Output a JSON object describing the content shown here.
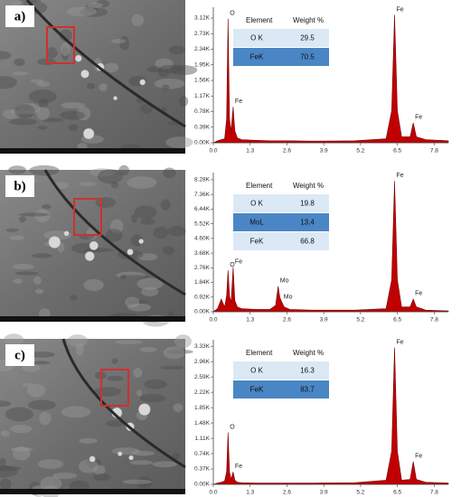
{
  "chart_data": [
    {
      "type": "area",
      "panel_label": "a)",
      "x": [
        0,
        0.15,
        0.28,
        0.4,
        0.47,
        0.52,
        0.57,
        0.63,
        0.7,
        0.76,
        0.85,
        1.0,
        1.5,
        2.0,
        2.2,
        2.29,
        2.35,
        2.42,
        2.5,
        2.7,
        3.5,
        5.0,
        6.1,
        6.3,
        6.4,
        6.5,
        6.65,
        6.95,
        7.06,
        7.17,
        7.5,
        8.3
      ],
      "values": [
        0,
        0.05,
        0.08,
        0.1,
        0.6,
        3.1,
        0.6,
        0.3,
        0.9,
        0.3,
        0.12,
        0.08,
        0.06,
        0.05,
        0.05,
        0.05,
        0.05,
        0.05,
        0.05,
        0.05,
        0.04,
        0.05,
        0.1,
        0.8,
        3.2,
        0.8,
        0.15,
        0.15,
        0.5,
        0.15,
        0.08,
        0.05
      ],
      "color": "#c00000",
      "xlim": [
        0,
        8.3
      ],
      "xticks": [
        {
          "value": 0,
          "label": "0.0"
        },
        1.3,
        2.6,
        3.9,
        5.2,
        6.5,
        7.8
      ],
      "ylim": [
        0,
        3.3
      ],
      "yticks": [
        {
          "value": 0,
          "label": "0.00K"
        },
        {
          "value": 0.39,
          "label": "0.39K"
        },
        {
          "value": 0.78,
          "label": "0.78K"
        },
        {
          "value": 1.17,
          "label": "1.17K"
        },
        {
          "value": 1.56,
          "label": "1.56K"
        },
        {
          "value": 1.95,
          "label": "1.95K"
        },
        {
          "value": 2.34,
          "label": "2.34K"
        },
        {
          "value": 2.73,
          "label": "2.73K"
        },
        {
          "value": 3.12,
          "label": "3.12K"
        }
      ],
      "annotations": [
        {
          "text": "O",
          "x": 0.52
        },
        {
          "text": "Fe",
          "x": 0.7
        },
        {
          "text": "Fe",
          "x": 6.4
        },
        {
          "text": "Fe",
          "x": 7.06
        }
      ],
      "table": {
        "columns": [
          "Element",
          "Weight %"
        ],
        "rows": [
          [
            "O K",
            29.5
          ],
          [
            "FeK",
            70.5
          ]
        ]
      }
    },
    {
      "type": "area",
      "panel_label": "b)",
      "x": [
        0,
        0.15,
        0.28,
        0.4,
        0.47,
        0.52,
        0.57,
        0.63,
        0.7,
        0.76,
        0.85,
        1.0,
        1.5,
        2.0,
        2.2,
        2.29,
        2.35,
        2.42,
        2.5,
        2.7,
        3.5,
        5.0,
        6.1,
        6.3,
        6.4,
        6.5,
        6.65,
        6.95,
        7.06,
        7.17,
        7.5,
        8.3
      ],
      "values": [
        0,
        0.2,
        0.8,
        0.3,
        1.0,
        2.6,
        1.0,
        0.6,
        2.8,
        0.7,
        0.3,
        0.2,
        0.15,
        0.15,
        0.4,
        1.6,
        0.9,
        0.6,
        0.3,
        0.15,
        0.1,
        0.1,
        0.2,
        2.0,
        8.2,
        2.0,
        0.3,
        0.3,
        0.8,
        0.3,
        0.1,
        0.05
      ],
      "color": "#c00000",
      "xlim": [
        0,
        8.3
      ],
      "xticks": [
        {
          "value": 0,
          "label": "0.0"
        },
        1.3,
        2.6,
        3.9,
        5.2,
        6.5,
        7.8
      ],
      "ylim": [
        0,
        8.5
      ],
      "yticks": [
        {
          "value": 0,
          "label": "0.00K"
        },
        {
          "value": 0.92,
          "label": "0.92K"
        },
        {
          "value": 1.84,
          "label": "1.84K"
        },
        {
          "value": 2.76,
          "label": "2.76K"
        },
        {
          "value": 3.68,
          "label": "3.68K"
        },
        {
          "value": 4.6,
          "label": "4.60K"
        },
        {
          "value": 5.52,
          "label": "5.52K"
        },
        {
          "value": 6.44,
          "label": "6.44K"
        },
        {
          "value": 7.36,
          "label": "7.36K"
        },
        {
          "value": 8.28,
          "label": "8.28K"
        }
      ],
      "annotations": [
        {
          "text": "O",
          "x": 0.52
        },
        {
          "text": "Fe",
          "x": 0.7
        },
        {
          "text": "Mo",
          "x": 2.29
        },
        {
          "text": "Mo",
          "x": 2.42
        },
        {
          "text": "Fe",
          "x": 6.4
        },
        {
          "text": "Fe",
          "x": 7.06
        }
      ],
      "table": {
        "columns": [
          "Element",
          "Weight %"
        ],
        "rows": [
          [
            "O K",
            19.8
          ],
          [
            "MoL",
            13.4
          ],
          [
            "FeK",
            66.8
          ]
        ]
      }
    },
    {
      "type": "area",
      "panel_label": "c)",
      "x": [
        0,
        0.15,
        0.28,
        0.4,
        0.47,
        0.52,
        0.57,
        0.63,
        0.7,
        0.76,
        0.85,
        1.0,
        1.5,
        2.0,
        2.2,
        2.29,
        2.35,
        2.42,
        2.5,
        2.7,
        3.5,
        5.0,
        6.1,
        6.3,
        6.4,
        6.5,
        6.65,
        6.95,
        7.06,
        7.17,
        7.5,
        8.3
      ],
      "values": [
        0,
        0.03,
        0.05,
        0.08,
        0.3,
        1.25,
        0.3,
        0.12,
        0.3,
        0.1,
        0.05,
        0.04,
        0.03,
        0.03,
        0.03,
        0.03,
        0.03,
        0.03,
        0.03,
        0.03,
        0.03,
        0.04,
        0.1,
        0.8,
        3.3,
        0.8,
        0.1,
        0.12,
        0.55,
        0.12,
        0.05,
        0.03
      ],
      "color": "#c00000",
      "xlim": [
        0,
        8.3
      ],
      "xticks": [
        {
          "value": 0,
          "label": "0.0"
        },
        1.3,
        2.6,
        3.9,
        5.2,
        6.5,
        7.8
      ],
      "ylim": [
        0,
        3.4
      ],
      "yticks": [
        {
          "value": 0,
          "label": "0.00K"
        },
        {
          "value": 0.37,
          "label": "0.37K"
        },
        {
          "value": 0.74,
          "label": "0.74K"
        },
        {
          "value": 1.11,
          "label": "1.11K"
        },
        {
          "value": 1.48,
          "label": "1.48K"
        },
        {
          "value": 1.85,
          "label": "1.85K"
        },
        {
          "value": 2.22,
          "label": "2.22K"
        },
        {
          "value": 2.59,
          "label": "2.59K"
        },
        {
          "value": 2.96,
          "label": "2.96K"
        },
        {
          "value": 3.33,
          "label": "3.33K"
        }
      ],
      "annotations": [
        {
          "text": "O",
          "x": 0.52
        },
        {
          "text": "Fe",
          "x": 0.7
        },
        {
          "text": "Fe",
          "x": 6.4
        },
        {
          "text": "Fe",
          "x": 7.06
        }
      ],
      "table": {
        "columns": [
          "Element",
          "Weight %"
        ],
        "rows": [
          [
            "O K",
            16.3
          ],
          [
            "FeK",
            83.7
          ]
        ]
      }
    }
  ]
}
